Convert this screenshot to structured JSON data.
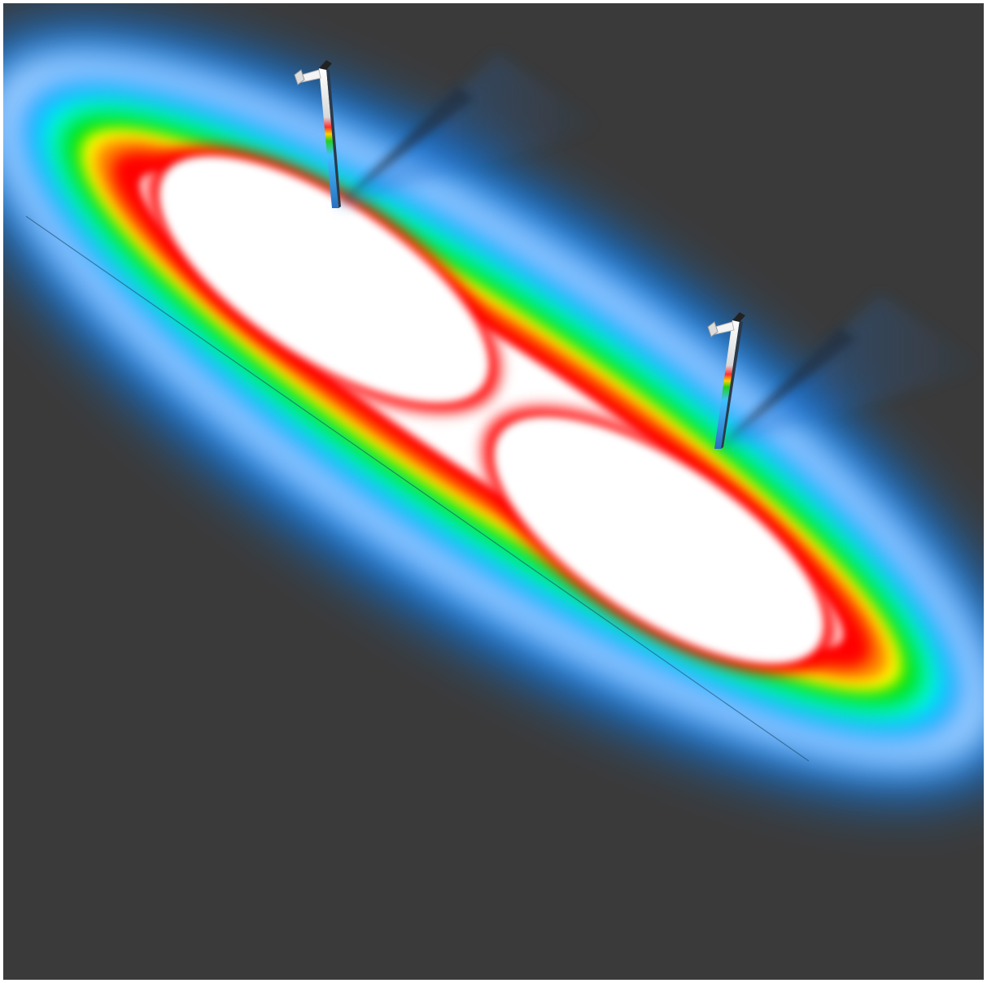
{
  "scene": {
    "kind": "false-color illuminance render",
    "background_color": "#3a3a3a",
    "frame_color": "#ffffff",
    "colormap": [
      "#ffffff",
      "#ff0000",
      "#ff8000",
      "#ffff00",
      "#00e000",
      "#00ffff",
      "#0080ff",
      "#ffffff",
      "#3a3a3a"
    ],
    "poles": [
      {
        "id": "pole-left"
      },
      {
        "id": "pole-right"
      }
    ]
  }
}
